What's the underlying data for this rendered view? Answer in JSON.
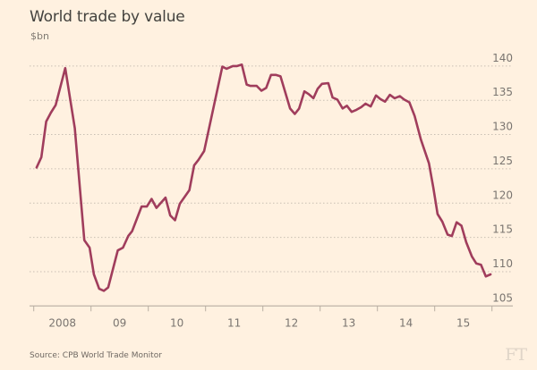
{
  "header": {
    "title": "World trade by value",
    "unit": "$bn"
  },
  "footer": {
    "source": "Source: CPB World Trade Monitor",
    "logo": "FT"
  },
  "colors": {
    "background": "#fff1e0",
    "line": "#a03d5c",
    "grid": "#c9bfb3",
    "axis": "#b8aea2"
  },
  "chart_data": {
    "type": "line",
    "title": "World trade by value",
    "subtitle": "$bn",
    "xlabel": "",
    "ylabel": "$bn",
    "x_unit": "months since Jan 2008",
    "xlim": [
      0,
      101
    ],
    "ylim": [
      105,
      142
    ],
    "yticks": [
      105,
      110,
      115,
      120,
      125,
      130,
      135,
      140
    ],
    "xticks": [
      {
        "pos": 0,
        "label": ""
      },
      {
        "pos": 12,
        "label": ""
      },
      {
        "pos": 24,
        "label": ""
      },
      {
        "pos": 36,
        "label": ""
      },
      {
        "pos": 48,
        "label": ""
      },
      {
        "pos": 60,
        "label": ""
      },
      {
        "pos": 72,
        "label": ""
      },
      {
        "pos": 84,
        "label": ""
      },
      {
        "pos": 96,
        "label": ""
      }
    ],
    "xtick_labels": [
      {
        "pos": 6,
        "label": "2008"
      },
      {
        "pos": 18,
        "label": "09"
      },
      {
        "pos": 30,
        "label": "10"
      },
      {
        "pos": 42,
        "label": "11"
      },
      {
        "pos": 54,
        "label": "12"
      },
      {
        "pos": 66,
        "label": "13"
      },
      {
        "pos": 78,
        "label": "14"
      },
      {
        "pos": 90,
        "label": "15"
      }
    ],
    "grid": true,
    "y_axis_side": "right",
    "series": [
      {
        "name": "World trade by value",
        "x": [
          0.6,
          1.6,
          2.6,
          3.6,
          4.6,
          6.6,
          8.6,
          10.6,
          11.7,
          12.6,
          13.7,
          14.7,
          15.6,
          17.6,
          18.7,
          19.8,
          20.6,
          22.6,
          23.7,
          24.7,
          25.7,
          27.6,
          28.6,
          29.6,
          30.6,
          32.6,
          33.6,
          34.5,
          35.7,
          39.5,
          40.4,
          41.7,
          42.6,
          43.6,
          44.6,
          45.4,
          46.7,
          47.7,
          48.7,
          49.7,
          50.7,
          51.7,
          52.6,
          53.7,
          54.7,
          55.6,
          56.7,
          57.6,
          58.6,
          59.5,
          60.4,
          61.7,
          62.6,
          63.6,
          64.7,
          65.6,
          66.6,
          67.6,
          68.6,
          69.5,
          70.6,
          71.7,
          72.6,
          73.6,
          74.6,
          75.6,
          76.7,
          77.6,
          78.7,
          79.8,
          81.1,
          82.8,
          83.7,
          84.6,
          85.6,
          86.7,
          87.6,
          88.6,
          89.6,
          90.6,
          91.8,
          92.7,
          93.7,
          94.7,
          95.7
        ],
        "values": [
          125.2,
          126.7,
          131.9,
          133.2,
          134.3,
          139.7,
          130.9,
          114.6,
          113.5,
          109.6,
          107.5,
          107.2,
          107.7,
          113.1,
          113.5,
          115.2,
          115.9,
          119.5,
          119.5,
          120.6,
          119.3,
          120.8,
          118.2,
          117.5,
          119.9,
          121.9,
          125.5,
          126.3,
          127.6,
          139.9,
          139.6,
          140.0,
          140.0,
          140.2,
          137.3,
          137.1,
          137.1,
          136.4,
          136.8,
          138.7,
          138.7,
          138.5,
          136.4,
          133.8,
          133.0,
          133.8,
          136.3,
          135.9,
          135.3,
          136.7,
          137.4,
          137.5,
          135.4,
          135.1,
          133.8,
          134.2,
          133.3,
          133.6,
          134.0,
          134.5,
          134.1,
          135.7,
          135.2,
          134.8,
          135.8,
          135.3,
          135.6,
          135.1,
          134.7,
          132.7,
          129.3,
          125.8,
          122.3,
          118.4,
          117.3,
          115.4,
          115.2,
          117.2,
          116.7,
          114.3,
          112.2,
          111.2,
          111.0,
          109.3,
          109.6
        ]
      }
    ]
  }
}
